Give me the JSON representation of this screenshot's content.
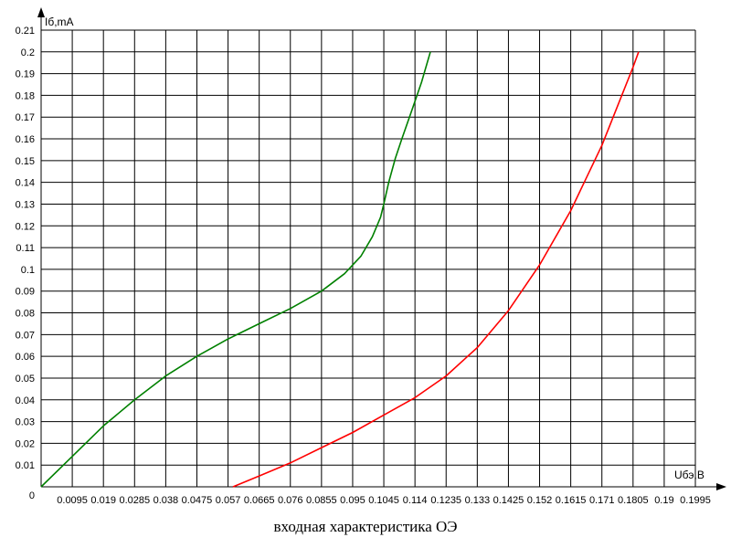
{
  "chart_data": {
    "type": "line",
    "title": "входная характеристика ОЭ",
    "ylabel": "Iб,mA",
    "xlabel": "Uбэ,B",
    "xlim": [
      0,
      0.1995
    ],
    "ylim": [
      0,
      0.21
    ],
    "grid": true,
    "x_ticks": [
      "0",
      "0.0095",
      "0.019",
      "0.0285",
      "0.038",
      "0.0475",
      "0.057",
      "0.0665",
      "0.076",
      "0.0855",
      "0.095",
      "0.1045",
      "0.114",
      "0.1235",
      "0.133",
      "0.1425",
      "0.152",
      "0.1615",
      "0.171",
      "0.1805",
      "0.19",
      "0.1995"
    ],
    "y_ticks": [
      "0.01",
      "0.02",
      "0.03",
      "0.04",
      "0.05",
      "0.06",
      "0.07",
      "0.08",
      "0.09",
      "0.1",
      "0.11",
      "0.12",
      "0.13",
      "0.14",
      "0.15",
      "0.16",
      "0.17",
      "0.18",
      "0.19",
      "0.2",
      "0.21"
    ],
    "origin_label": "0",
    "series": [
      {
        "color": "#008000",
        "x": [
          0,
          0.0095,
          0.019,
          0.0285,
          0.038,
          0.0475,
          0.057,
          0.0665,
          0.076,
          0.0855,
          0.0925,
          0.0975,
          0.101,
          0.1035,
          0.1045,
          0.106,
          0.108,
          0.11,
          0.113,
          0.116,
          0.1187
        ],
        "y": [
          0,
          0.014,
          0.028,
          0.04,
          0.051,
          0.06,
          0.068,
          0.075,
          0.082,
          0.09,
          0.098,
          0.106,
          0.115,
          0.124,
          0.13,
          0.14,
          0.151,
          0.16,
          0.173,
          0.186,
          0.2
        ]
      },
      {
        "color": "#ff0000",
        "x": [
          0.0585,
          0.0665,
          0.076,
          0.0855,
          0.095,
          0.1045,
          0.114,
          0.1235,
          0.133,
          0.1425,
          0.152,
          0.1615,
          0.171,
          0.1805,
          0.1822
        ],
        "y": [
          0,
          0.005,
          0.011,
          0.018,
          0.025,
          0.033,
          0.041,
          0.051,
          0.064,
          0.081,
          0.102,
          0.127,
          0.157,
          0.193,
          0.2
        ]
      }
    ]
  }
}
